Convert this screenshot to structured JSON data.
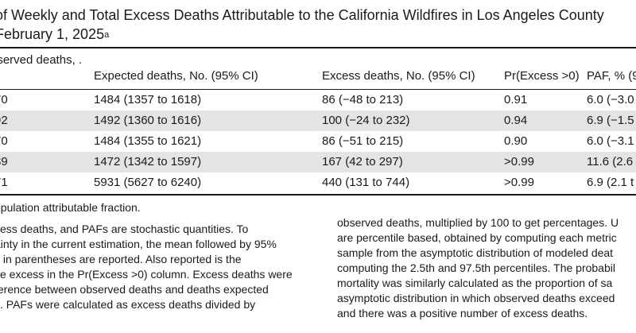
{
  "title": {
    "line1": "of Weekly and Total Excess Deaths Attributable to the California Wildfires in Los Angeles County",
    "line2": "February 1, 2025",
    "footnote_mark": "a"
  },
  "columns": {
    "observed": "bserved deaths, .",
    "expected": "Expected deaths, No. (95% CI)",
    "excess": "Excess deaths, No. (95% CI)",
    "pr": "Pr(Excess >0)",
    "paf": "PAF, % (95"
  },
  "rows": [
    {
      "observed": "70",
      "expected": "1484 (1357 to 1618)",
      "excess": "86 (−48 to 213)",
      "pr": "0.91",
      "paf": "6.0 (−3.0"
    },
    {
      "observed": "92",
      "expected": "1492 (1360 to 1616)",
      "excess": "100 (−24 to 232)",
      "pr": "0.94",
      "paf": "6.9 (−1.5"
    },
    {
      "observed": "70",
      "expected": "1484 (1355 to 1621)",
      "excess": "86 (−51 to 215)",
      "pr": "0.90",
      "paf": "6.0 (−3.1"
    },
    {
      "observed": "39",
      "expected": "1472 (1342 to 1597)",
      "excess": "167 (42 to 297)",
      "pr": ">0.99",
      "paf": "11.6 (2.6"
    },
    {
      "observed": "71",
      "expected": "5931 (5627 to 6240)",
      "excess": "440 (131 to 744)",
      "pr": ">0.99",
      "paf": "6.9 (2.1 t"
    }
  ],
  "notes_left": [
    "opulation attributable fraction.",
    "cess deaths, and PAFs are stochastic quantities. To",
    "ainty in the current estimation, the mean followed by 95%",
    "s in parentheses are reported. Also reported is the",
    "ve excess in the Pr(Excess >0) column. Excess deaths were",
    "ference between observed deaths and deaths expected",
    "s. PAFs were calculated as excess deaths divided by"
  ],
  "notes_right": [
    "observed deaths, multiplied by 100 to get percentages. U",
    "are percentile based, obtained by computing each metric",
    "sample from the asymptotic distribution of modeled deat",
    "computing the 2.5th and 97.5th percentiles. The probabil",
    "mortality was similarly calculated as the proportion of sa",
    "asymptotic distribution in which observed deaths exceed",
    "and there was a positive number of excess deaths."
  ]
}
